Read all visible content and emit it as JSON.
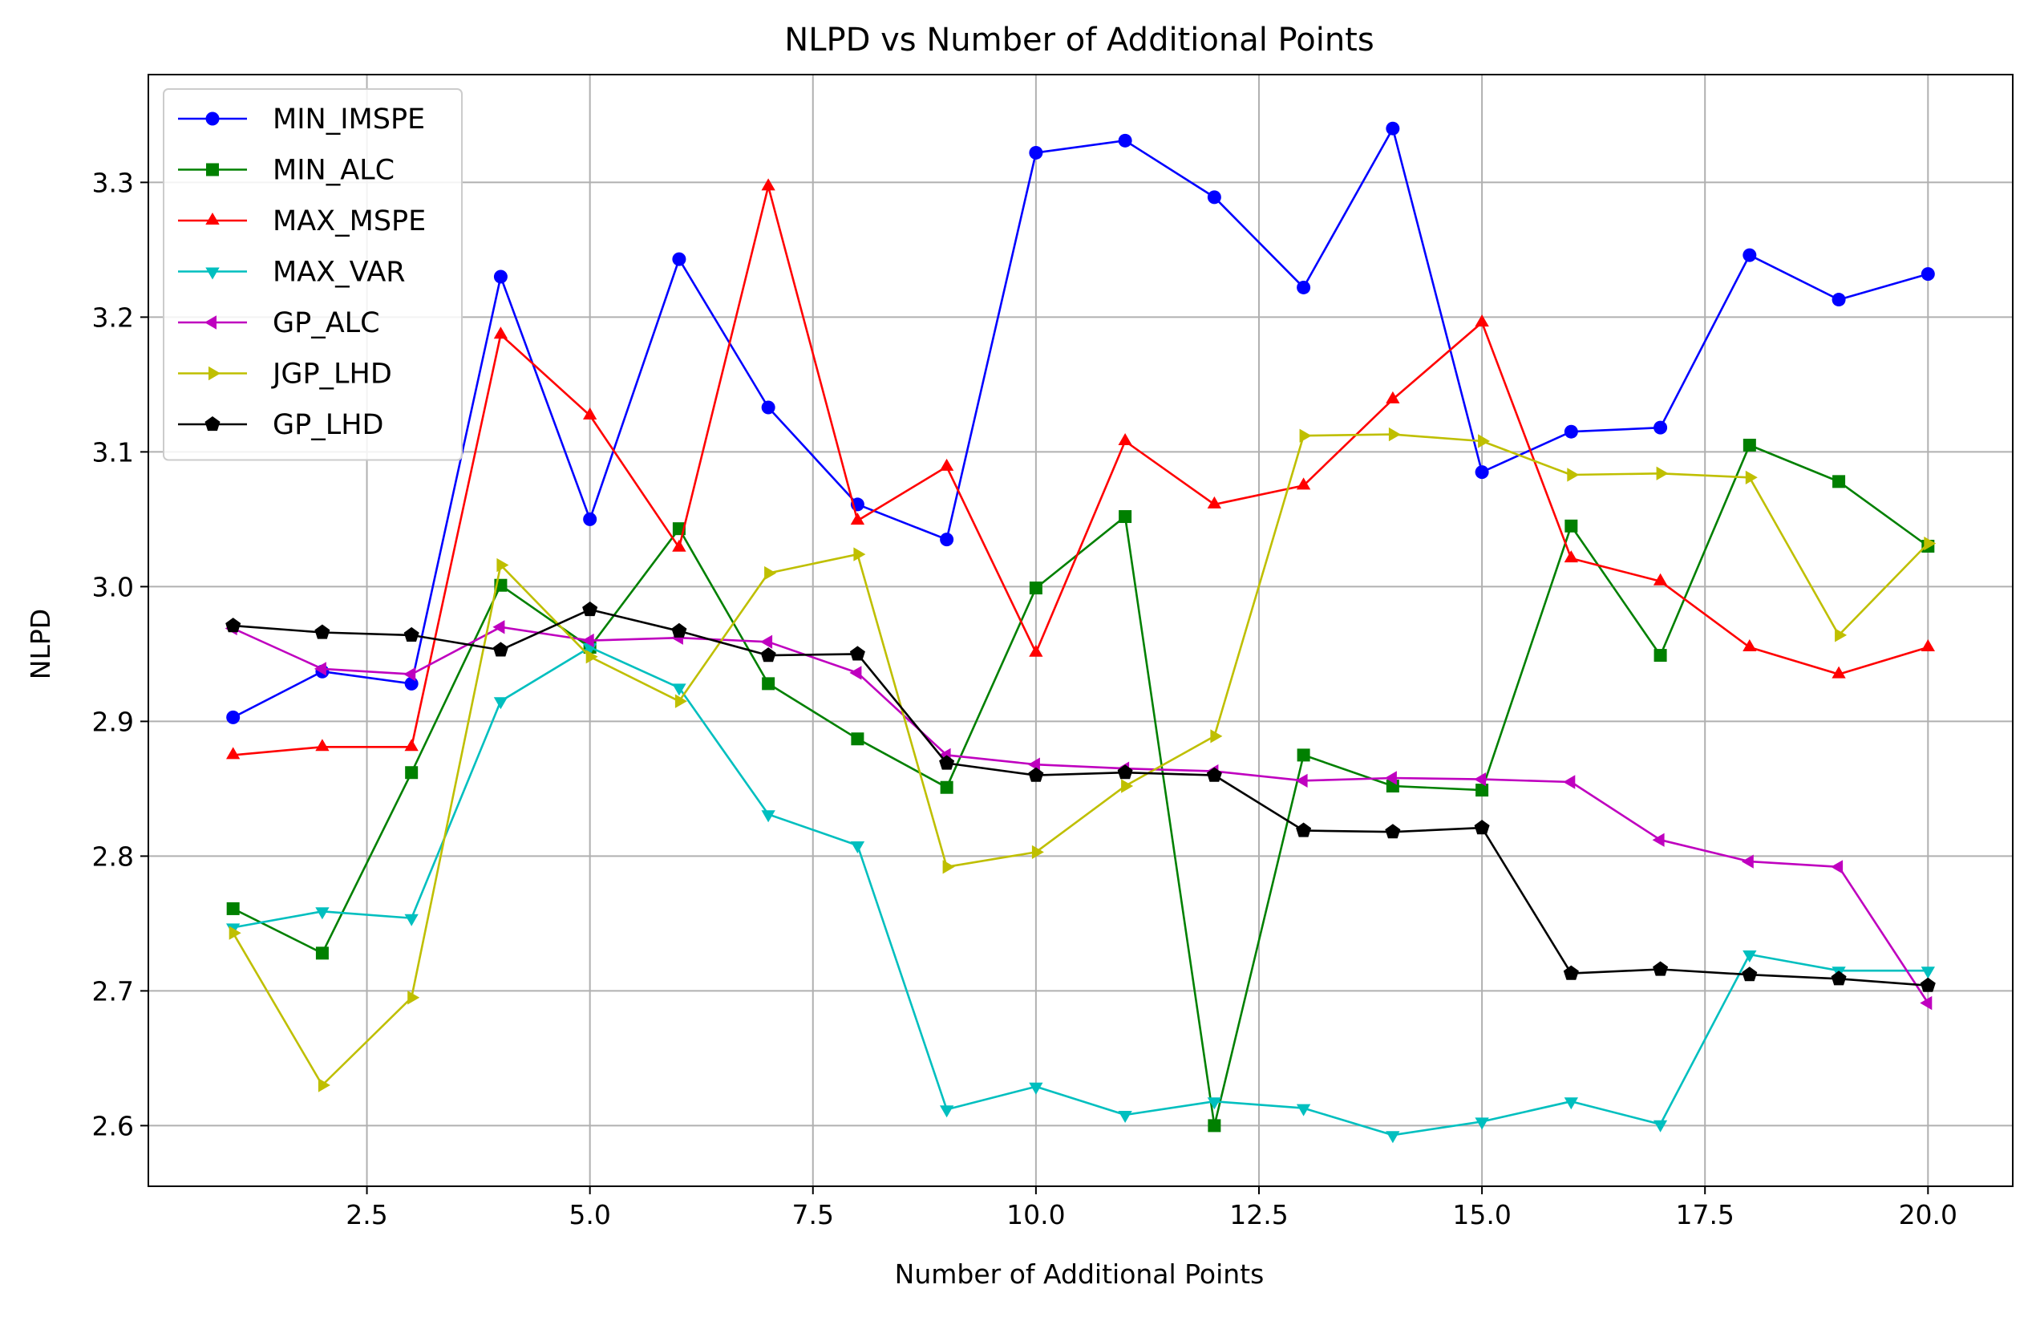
{
  "chart_data": {
    "type": "line",
    "title": "NLPD vs Number of Additional Points",
    "xlabel": "Number of Additional Points",
    "ylabel": "NLPD",
    "xlim": [
      0.05,
      20.95
    ],
    "ylim": [
      2.555,
      3.38
    ],
    "xticks": [
      2.5,
      5.0,
      7.5,
      10.0,
      12.5,
      15.0,
      17.5,
      20.0
    ],
    "xtick_labels": [
      "2.5",
      "5.0",
      "7.5",
      "10.0",
      "12.5",
      "15.0",
      "17.5",
      "20.0"
    ],
    "yticks": [
      2.6,
      2.7,
      2.8,
      2.9,
      3.0,
      3.1,
      3.2,
      3.3
    ],
    "ytick_labels": [
      "2.6",
      "2.7",
      "2.8",
      "2.9",
      "3.0",
      "3.1",
      "3.2",
      "3.3"
    ],
    "grid": true,
    "legend_position": "top-left",
    "x": [
      1,
      2,
      3,
      4,
      5,
      6,
      7,
      8,
      9,
      10,
      11,
      12,
      13,
      14,
      15,
      16,
      17,
      18,
      19,
      20
    ],
    "series": [
      {
        "name": "MIN_IMSPE",
        "color": "#0000ff",
        "marker": "circle",
        "values": [
          2.903,
          2.937,
          2.928,
          3.23,
          3.05,
          3.243,
          3.133,
          3.061,
          3.035,
          3.322,
          3.331,
          3.289,
          3.222,
          3.34,
          3.085,
          3.115,
          3.118,
          3.246,
          3.213,
          3.232
        ]
      },
      {
        "name": "MIN_ALC",
        "color": "#008000",
        "marker": "square",
        "values": [
          2.761,
          2.728,
          2.862,
          3.001,
          2.955,
          3.043,
          2.928,
          2.887,
          2.851,
          2.999,
          3.052,
          2.6,
          2.875,
          2.852,
          2.849,
          3.045,
          2.949,
          3.105,
          3.078,
          3.03
        ]
      },
      {
        "name": "MAX_MSPE",
        "color": "#ff0000",
        "marker": "triangle-up",
        "values": [
          2.875,
          2.881,
          2.881,
          3.187,
          3.127,
          3.029,
          3.297,
          3.049,
          3.089,
          2.951,
          3.108,
          3.061,
          3.075,
          3.139,
          3.196,
          3.021,
          3.004,
          2.955,
          2.935,
          2.955
        ]
      },
      {
        "name": "MAX_VAR",
        "color": "#00bfbf",
        "marker": "triangle-down",
        "values": [
          2.747,
          2.759,
          2.754,
          2.915,
          2.955,
          2.925,
          2.831,
          2.808,
          2.612,
          2.629,
          2.608,
          2.618,
          2.613,
          2.593,
          2.603,
          2.618,
          2.601,
          2.727,
          2.715,
          2.715
        ]
      },
      {
        "name": "GP_ALC",
        "color": "#bf00bf",
        "marker": "triangle-left",
        "values": [
          2.969,
          2.939,
          2.935,
          2.97,
          2.96,
          2.962,
          2.959,
          2.936,
          2.875,
          2.868,
          2.865,
          2.863,
          2.856,
          2.858,
          2.857,
          2.855,
          2.812,
          2.796,
          2.792,
          2.691
        ]
      },
      {
        "name": "JGP_LHD",
        "color": "#bfbf00",
        "marker": "triangle-right",
        "values": [
          2.743,
          2.63,
          2.695,
          3.016,
          2.948,
          2.915,
          3.01,
          3.024,
          2.792,
          2.803,
          2.852,
          2.889,
          3.112,
          3.113,
          3.108,
          3.083,
          3.084,
          3.081,
          2.964,
          3.032
        ]
      },
      {
        "name": "GP_LHD",
        "color": "#000000",
        "marker": "pentagon",
        "values": [
          2.971,
          2.966,
          2.964,
          2.953,
          2.983,
          2.967,
          2.949,
          2.95,
          2.869,
          2.86,
          2.862,
          2.86,
          2.819,
          2.818,
          2.821,
          2.713,
          2.716,
          2.712,
          2.709,
          2.704
        ]
      }
    ]
  }
}
